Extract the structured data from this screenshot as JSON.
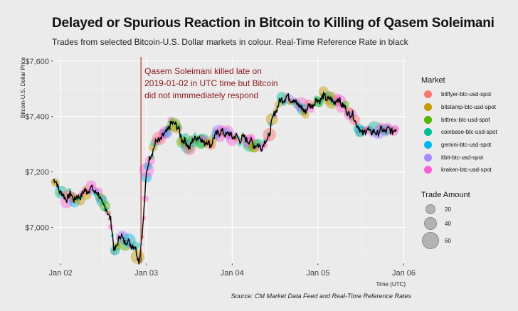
{
  "title": "Delayed or Spurious Reaction in Bitcoin to Killing of Qasem Soleimani",
  "subtitle": "Trades from selected Bitcoin-U.S. Dollar markets in colour. Real-Time Reference Rate in black",
  "caption": "Source: CM Market Data Feed and Real-Time Reference Rates",
  "colors": {
    "background": "#ebebeb",
    "reference_line": "#000000",
    "annotation": "#8b1a1a"
  },
  "chart_data": {
    "type": "line",
    "xlabel": "Time (UTC)",
    "ylabel": "Bitcoin-U.S. Dollar Price",
    "x_ticks": [
      "Jan 02",
      "Jan 03",
      "Jan 04",
      "Jan 05",
      "Jan 06"
    ],
    "y_ticks": [
      "$7,000",
      "$7,200",
      "$7,400",
      "$7,600"
    ],
    "xlim": [
      "2020-01-01 22:00",
      "2020-01-06 00:30"
    ],
    "ylim": [
      6870,
      7615
    ],
    "grid": true,
    "vline": {
      "x": "2020-01-02 22:30",
      "label": "Qasem Soleimani killed late on 2019-01-02 in UTC time but Bitcoin did not immmediately respond"
    },
    "reference_rate": {
      "name": "Real-Time Reference Rate",
      "x_hours": [
        0,
        1,
        2,
        3,
        4,
        5,
        6,
        8,
        10,
        12,
        14,
        16,
        17,
        18,
        19,
        20,
        21,
        22,
        23,
        24,
        25,
        26,
        27,
        28,
        29,
        30,
        31,
        32,
        33,
        34,
        36,
        38,
        40,
        42,
        44,
        46,
        48,
        50,
        52,
        54,
        56,
        58,
        60,
        62,
        64,
        66,
        68,
        70,
        72,
        74,
        76,
        78,
        80,
        82,
        84,
        86,
        88,
        90,
        92,
        94,
        96
      ],
      "values": [
        7170,
        7160,
        7125,
        7110,
        7105,
        7120,
        7100,
        7120,
        7140,
        7130,
        7080,
        7035,
        6910,
        6950,
        6970,
        6950,
        6945,
        6940,
        6920,
        6880,
        6990,
        7200,
        7250,
        7290,
        7310,
        7320,
        7330,
        7355,
        7370,
        7380,
        7320,
        7290,
        7330,
        7310,
        7300,
        7345,
        7340,
        7330,
        7320,
        7320,
        7300,
        7290,
        7320,
        7420,
        7465,
        7470,
        7450,
        7420,
        7440,
        7460,
        7470,
        7455,
        7460,
        7420,
        7400,
        7340,
        7350,
        7340,
        7350,
        7350,
        7350
      ]
    },
    "dates": [
      "2020-01-02",
      "2020-01-03",
      "2020-01-04",
      "2020-01-05",
      "2020-01-06"
    ],
    "markets": [
      {
        "name": "bitflyer-btc-usd-spot",
        "color": "#f8766d"
      },
      {
        "name": "bitstamp-btc-usd-spot",
        "color": "#c49a00"
      },
      {
        "name": "bittrex-btc-usd-spot",
        "color": "#53b400"
      },
      {
        "name": "coinbase-btc-usd-spot",
        "color": "#00c094"
      },
      {
        "name": "gemini-btc-usd-spot",
        "color": "#00b6eb"
      },
      {
        "name": "itbit-btc-usd-spot",
        "color": "#a58aff"
      },
      {
        "name": "kraken-btc-usd-spot",
        "color": "#fb61d7"
      }
    ],
    "size_legend": {
      "title": "Trade Amount",
      "values": [
        20,
        40,
        60
      ]
    }
  }
}
